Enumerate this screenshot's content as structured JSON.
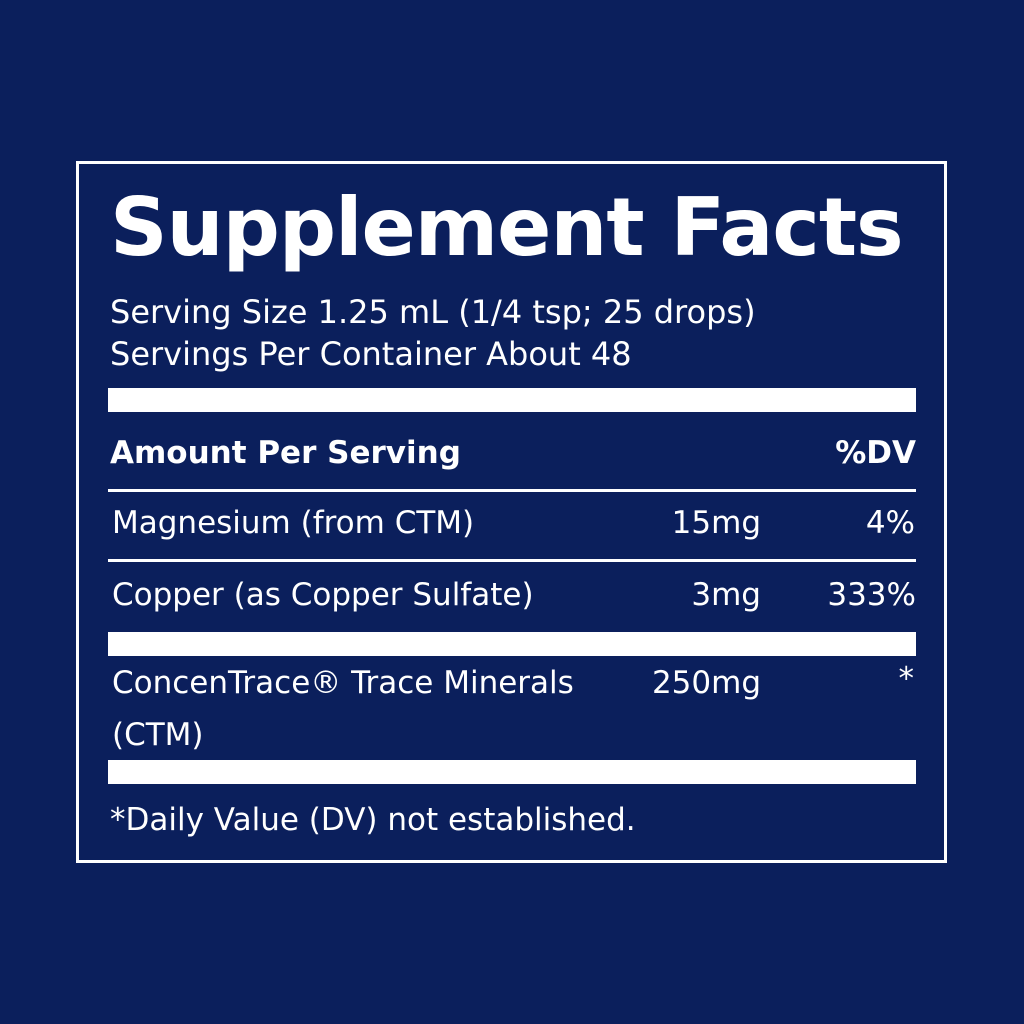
{
  "title": "Supplement Facts",
  "serving_size": "Serving Size 1.25 mL (1/4 tsp; 25 drops)",
  "servings_per_container": "Servings Per Container About 48",
  "header": {
    "amount": "Amount Per Serving",
    "dv": "%DV"
  },
  "rows": [
    {
      "name": "Magnesium (from CTM)",
      "amount": "15mg",
      "dv": "4%"
    },
    {
      "name": "Copper (as Copper Sulfate)",
      "amount": "3mg",
      "dv": "333%"
    },
    {
      "name": "ConcenTrace® Trace Minerals",
      "name_line2": "(CTM)",
      "amount": "250mg",
      "dv": "*"
    }
  ],
  "footnote": "*Daily Value (DV) not established.",
  "colors": {
    "background": "#0b1f5c",
    "foreground": "#ffffff"
  }
}
